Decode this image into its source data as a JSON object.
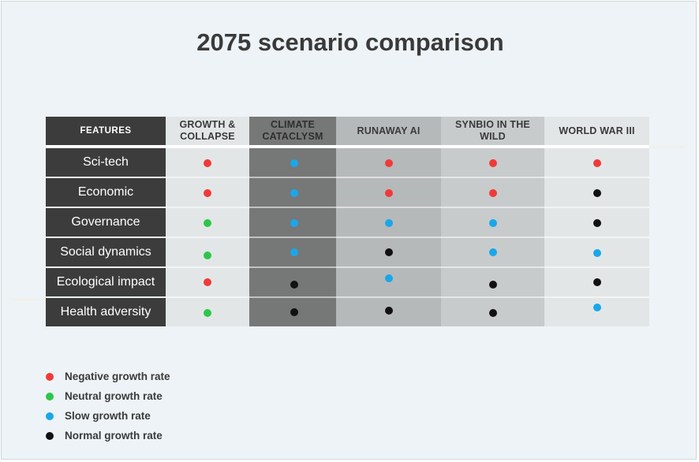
{
  "title": "2075 scenario comparison",
  "table": {
    "features_header": "FEATURES",
    "columns": [
      {
        "label": "GROWTH & COLLAPSE",
        "bg": "#e3e6e7",
        "header_color": "#3a3a3a"
      },
      {
        "label": "CLIMATE CATACLYSM",
        "bg": "#767777",
        "header_color": "#2f2f2f"
      },
      {
        "label": "RUNAWAY AI",
        "bg": "#b6b9ba",
        "header_color": "#3a3a3a"
      },
      {
        "label": "SYNBIO IN THE WILD",
        "bg": "#c8cbcc",
        "header_color": "#3a3a3a"
      },
      {
        "label": "WORLD WAR III",
        "bg": "#e3e6e7",
        "header_color": "#3a3a3a"
      }
    ],
    "rows": [
      {
        "label": "Sci-tech",
        "values": [
          "negative",
          "slow",
          "negative",
          "negative",
          "negative"
        ]
      },
      {
        "label": "Economic",
        "values": [
          "negative",
          "slow",
          "negative",
          "negative",
          "normal"
        ]
      },
      {
        "label": "Governance",
        "values": [
          "neutral",
          "slow",
          "slow",
          "slow",
          "normal"
        ]
      },
      {
        "label": "Social dynamics",
        "values": [
          "neutral",
          "slow",
          "normal",
          "slow",
          "slow"
        ]
      },
      {
        "label": "Ecological impact",
        "values": [
          "negative",
          "normal",
          "slow",
          "normal",
          "normal"
        ]
      },
      {
        "label": "Health adversity",
        "values": [
          "neutral",
          "normal",
          "normal",
          "normal",
          "slow"
        ]
      }
    ]
  },
  "legend": [
    {
      "key": "negative",
      "label": "Negative growth rate",
      "color": "#f03a3a"
    },
    {
      "key": "neutral",
      "label": "Neutral growth rate",
      "color": "#2ec64a"
    },
    {
      "key": "slow",
      "label": "Slow growth rate",
      "color": "#1aa7ea"
    },
    {
      "key": "normal",
      "label": "Normal growth rate",
      "color": "#111111"
    }
  ]
}
